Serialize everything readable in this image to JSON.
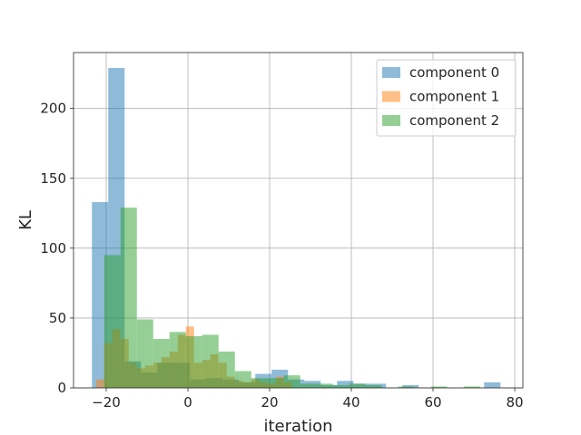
{
  "chart_data": {
    "type": "bar",
    "subtype": "histogram",
    "title": "",
    "xlabel": "iteration",
    "ylabel": "KL",
    "xlim": [
      -28,
      82
    ],
    "ylim": [
      0,
      240
    ],
    "xticks": [
      -20,
      0,
      20,
      40,
      60,
      80
    ],
    "xtick_labels": [
      "−20",
      "0",
      "20",
      "40",
      "60",
      "80"
    ],
    "yticks": [
      0,
      50,
      100,
      150,
      200
    ],
    "ytick_labels": [
      "0",
      "50",
      "100",
      "150",
      "200"
    ],
    "grid": true,
    "legend_position": "top-right",
    "series": [
      {
        "name": "component 0",
        "color": "#1f77b4",
        "opacity": 0.5,
        "bins": [
          [
            -23.5,
            -19.5,
            133
          ],
          [
            -19.5,
            -15.5,
            229
          ],
          [
            -15.5,
            -11.5,
            19
          ],
          [
            -11.5,
            -7.5,
            11
          ],
          [
            -7.5,
            -3.5,
            18
          ],
          [
            -3.5,
            0.5,
            18
          ],
          [
            0.5,
            4.5,
            6
          ],
          [
            4.5,
            8.5,
            7
          ],
          [
            8.5,
            12.5,
            6
          ],
          [
            12.5,
            16.5,
            4
          ],
          [
            16.5,
            20.5,
            10
          ],
          [
            20.5,
            24.5,
            13
          ],
          [
            24.5,
            28.5,
            6
          ],
          [
            28.5,
            32.5,
            5
          ],
          [
            32.5,
            36.5,
            2
          ],
          [
            36.5,
            40.5,
            5
          ],
          [
            40.5,
            44.5,
            3
          ],
          [
            44.5,
            48.5,
            3
          ],
          [
            52.5,
            56.5,
            2
          ],
          [
            72.5,
            76.5,
            4
          ]
        ]
      },
      {
        "name": "component 1",
        "color": "#ff7f0e",
        "opacity": 0.5,
        "bins": [
          [
            -22.5,
            -20.5,
            6
          ],
          [
            -20.5,
            -18.5,
            32
          ],
          [
            -18.5,
            -16.5,
            42
          ],
          [
            -16.5,
            -14.5,
            35
          ],
          [
            -14.5,
            -12.5,
            18
          ],
          [
            -12.5,
            -10.5,
            14
          ],
          [
            -10.5,
            -8.5,
            16
          ],
          [
            -8.5,
            -6.5,
            18
          ],
          [
            -6.5,
            -4.5,
            22
          ],
          [
            -4.5,
            -2.5,
            26
          ],
          [
            -2.5,
            -0.5,
            38
          ],
          [
            -0.5,
            1.5,
            44
          ],
          [
            1.5,
            3.5,
            18
          ],
          [
            3.5,
            5.5,
            20
          ],
          [
            5.5,
            7.5,
            24
          ],
          [
            7.5,
            9.5,
            18
          ],
          [
            9.5,
            11.5,
            8
          ],
          [
            11.5,
            13.5,
            5
          ],
          [
            13.5,
            15.5,
            4
          ],
          [
            15.5,
            17.5,
            6
          ],
          [
            17.5,
            19.5,
            4
          ],
          [
            19.5,
            21.5,
            3
          ],
          [
            21.5,
            23.5,
            8
          ],
          [
            23.5,
            25.5,
            4
          ]
        ]
      },
      {
        "name": "component 2",
        "color": "#2ca02c",
        "opacity": 0.5,
        "bins": [
          [
            -20.5,
            -16.5,
            95
          ],
          [
            -16.5,
            -12.5,
            129
          ],
          [
            -12.5,
            -8.5,
            49
          ],
          [
            -8.5,
            -4.5,
            35
          ],
          [
            -4.5,
            -0.5,
            40
          ],
          [
            -0.5,
            3.5,
            37
          ],
          [
            3.5,
            7.5,
            38
          ],
          [
            7.5,
            11.5,
            26
          ],
          [
            11.5,
            15.5,
            12
          ],
          [
            15.5,
            19.5,
            7
          ],
          [
            19.5,
            23.5,
            7
          ],
          [
            23.5,
            27.5,
            9
          ],
          [
            27.5,
            31.5,
            3
          ],
          [
            31.5,
            35.5,
            3
          ],
          [
            35.5,
            39.5,
            2
          ],
          [
            39.5,
            43.5,
            3
          ],
          [
            43.5,
            47.5,
            2
          ],
          [
            51.5,
            55.5,
            1
          ],
          [
            59.5,
            63.5,
            1
          ],
          [
            67.5,
            71.5,
            1
          ]
        ]
      }
    ]
  }
}
